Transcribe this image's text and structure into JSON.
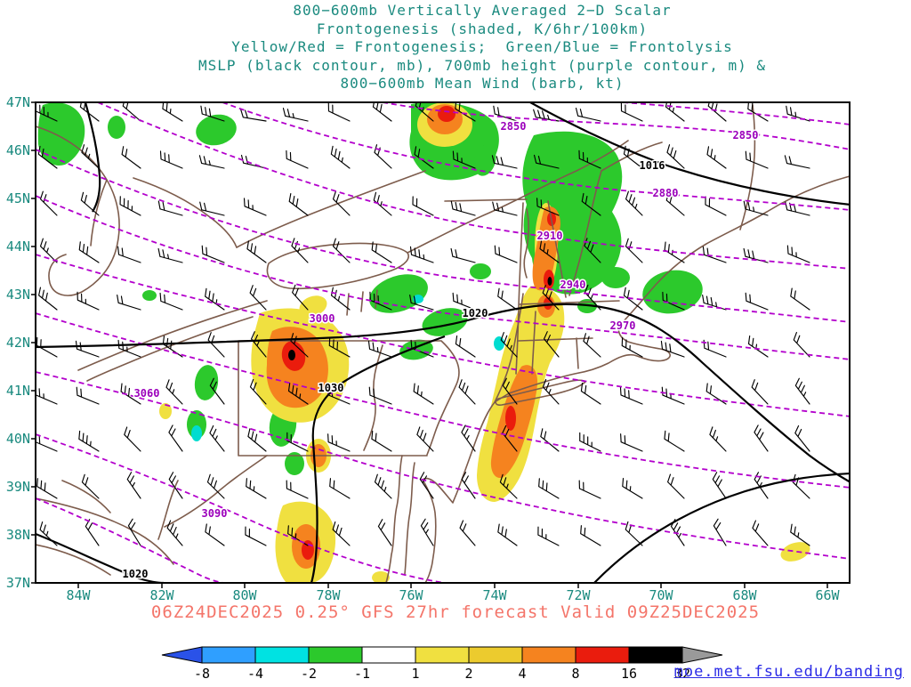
{
  "header": {
    "lines": [
      "800−600mb Vertically Averaged 2−D Scalar",
      "Frontogenesis (shaded, K/6hr/100km)",
      "Yellow/Red = Frontogenesis;  Green/Blue = Frontolysis",
      "MSLP (black contour, mb), 700mb height (purple contour, m) &",
      "800−600mb Mean Wind (barb, kt)"
    ]
  },
  "axes": {
    "lat": [
      "47N",
      "46N",
      "45N",
      "44N",
      "43N",
      "42N",
      "41N",
      "40N",
      "39N",
      "38N",
      "37N"
    ],
    "lon": [
      "84W",
      "82W",
      "80W",
      "78W",
      "76W",
      "74W",
      "72W",
      "70W",
      "68W",
      "66W"
    ]
  },
  "contour_labels": {
    "purple": [
      {
        "text": "2850"
      },
      {
        "text": "2850"
      },
      {
        "text": "2880"
      },
      {
        "text": "2910"
      },
      {
        "text": "2940"
      },
      {
        "text": "2970"
      },
      {
        "text": "3000"
      },
      {
        "text": "3060"
      },
      {
        "text": "3090"
      }
    ],
    "black": [
      {
        "text": "1016"
      },
      {
        "text": "1020"
      },
      {
        "text": "1030"
      },
      {
        "text": "1020"
      }
    ]
  },
  "colorbar": {
    "labels": [
      "-8",
      "-4",
      "-2",
      "-1",
      "1",
      "2",
      "4",
      "8",
      "16",
      "32"
    ],
    "colors": [
      "#2a52e8",
      "#2f9fff",
      "#00e2e2",
      "#2cc92c",
      "#ffffff",
      "#f0e040",
      "#eccb2e",
      "#f5831f",
      "#ea1c0d",
      "#000000",
      "#9a9a9a"
    ]
  },
  "footer": {
    "caption": "06Z24DEC2025 0.25° GFS 27hr forecast Valid 09Z25DEC2025",
    "link": "moe.met.fsu.edu/banding"
  },
  "colors": {
    "title_text": "#1a8a7f",
    "caption_text": "#f4756a",
    "link_text": "#2a2ae6",
    "purple_contour": "#b300cc",
    "black_contour": "#000000",
    "geography": "#7d5c4c",
    "frontogenesis_yellow": "#f0e040",
    "frontogenesis_orange": "#f5831f",
    "frontogenesis_red": "#ea1c0d",
    "frontolysis_green": "#2cc92c",
    "frontolysis_cyan": "#00dcd0"
  },
  "chart_data": {
    "type": "heatmap",
    "title": "800-600mb Vertically Averaged 2-D Scalar Frontogenesis (shaded, K/6hr/100km)",
    "region": {
      "lat_range": [
        "37N",
        "47N"
      ],
      "lon_range": [
        "85W",
        "65.5W"
      ]
    },
    "x_ticks": [
      "84W",
      "82W",
      "80W",
      "78W",
      "76W",
      "74W",
      "72W",
      "70W",
      "68W",
      "66W"
    ],
    "y_ticks": [
      "47N",
      "46N",
      "45N",
      "44N",
      "43N",
      "42N",
      "41N",
      "40N",
      "39N",
      "38N",
      "37N"
    ],
    "shading_levels_K_per_6hr_100km": [
      -8,
      -4,
      -2,
      -1,
      1,
      2,
      4,
      8,
      16,
      32
    ],
    "shading_colors": [
      "#2a52e8",
      "#2f9fff",
      "#00e2e2",
      "#2cc92c",
      "#ffffff",
      "#f0e040",
      "#eccb2e",
      "#f5831f",
      "#ea1c0d",
      "#000000",
      "#9a9a9a"
    ],
    "mslp_contours_mb": [
      1016,
      1020,
      1030
    ],
    "height_700mb_contours_m": [
      2850,
      2880,
      2910,
      2940,
      2970,
      3000,
      3060,
      3090
    ],
    "wind_layer": "800-600mb mean wind barbs (kt)",
    "forecast": {
      "init": "06Z24DEC2025",
      "model": "0.25° GFS",
      "hour": "27hr",
      "valid": "09Z25DEC2025"
    }
  }
}
